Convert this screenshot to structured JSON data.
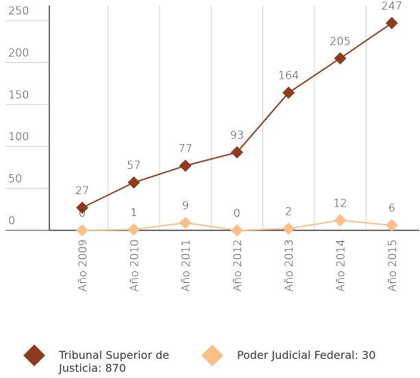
{
  "chart_data": {
    "type": "line",
    "categories": [
      "Año 2009",
      "Año 2010",
      "Año 2011",
      "Año 2012",
      "Año 2013",
      "Año 2014",
      "Año 2015"
    ],
    "series": [
      {
        "name": "Tribunal Superior de Justicia: 870",
        "color": "#8c3b1c",
        "values": [
          27,
          57,
          77,
          93,
          164,
          205,
          247
        ]
      },
      {
        "name": "Poder Judicial Federal: 30",
        "color": "#fbbf8a",
        "values": [
          0,
          1,
          9,
          0,
          2,
          12,
          6
        ]
      }
    ],
    "ylim": [
      0,
      268
    ],
    "yticks": [
      0,
      50,
      100,
      150,
      200,
      250
    ],
    "grid": true,
    "legend": "bottom"
  }
}
